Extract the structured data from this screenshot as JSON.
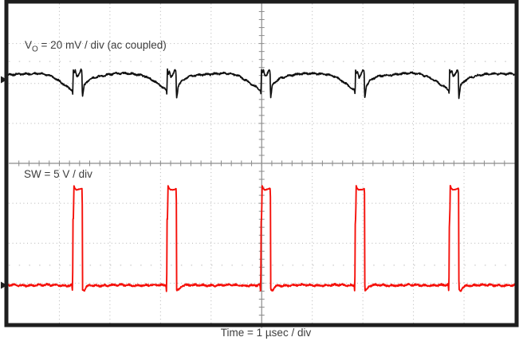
{
  "scope": {
    "description": "Oscilloscope capture of switching regulator waveforms",
    "grid_divisions_x": 10,
    "grid_divisions_y": 8,
    "frame_color": "#1e1e1e",
    "grid_color": "#b3b3b3",
    "axis_color": "#8c8c8c",
    "label_color": "#3d3d3d"
  },
  "chart_data": {
    "type": "line",
    "xlabel": "Time = 1 µsec / div",
    "time_per_div_us": 1,
    "x_range_us": [
      0,
      10
    ],
    "grid": {
      "x_divisions": 10,
      "y_divisions": 8,
      "style": "dotted",
      "center_axes_minor_ticks_per_div": 5
    },
    "series": [
      {
        "name": "VO",
        "legend_parts": {
          "prefix": "V",
          "sub": "O",
          "rest": " = 20 mV / div (ac coupled)"
        },
        "color": "#101010",
        "unit": "mV",
        "units_per_div": 20,
        "zero_div_from_top": 1.905,
        "period_us": 1.86,
        "first_edge_us": 1.26,
        "ripple_mv_pp": 15,
        "cycle_waypoints_t_v": [
          [
            0.0,
            -5.5
          ],
          [
            0.008,
            -9.0
          ],
          [
            0.012,
            5.8
          ],
          [
            0.03,
            3.0
          ],
          [
            0.055,
            4.6
          ],
          [
            0.085,
            1.4
          ],
          [
            0.12,
            2.4
          ],
          [
            0.165,
            5.0
          ],
          [
            0.185,
            4.2
          ],
          [
            0.196,
            -9.5
          ],
          [
            0.23,
            -3.0
          ],
          [
            0.3,
            -0.6
          ],
          [
            0.42,
            1.2
          ],
          [
            0.6,
            2.2
          ],
          [
            0.8,
            2.8
          ],
          [
            1.0,
            3.1
          ],
          [
            1.15,
            3.1
          ],
          [
            1.3,
            2.7
          ],
          [
            1.45,
            1.6
          ],
          [
            1.6,
            -0.6
          ],
          [
            1.72,
            -2.8
          ],
          [
            1.8,
            -4.2
          ],
          [
            1.86,
            -5.5
          ]
        ],
        "noise_low": 0.5,
        "noise_high": 0.5,
        "high_level": 100,
        "slope_cut": 300,
        "stroke_width": 1.7,
        "seed": 7
      },
      {
        "name": "SW",
        "legend": "SW = 5 V / div",
        "color": "#f5100a",
        "unit": "V",
        "units_per_div": 5,
        "zero_div_from_top": 7.052,
        "period_us": 1.86,
        "first_edge_us": 1.26,
        "on_time_us": 0.19,
        "high_v": 12.0,
        "low_v": 0.0,
        "cycle_waypoints_t_v": [
          [
            0.0,
            -0.9
          ],
          [
            0.006,
            3.0
          ],
          [
            0.01,
            8.3
          ],
          [
            0.02,
            8.3
          ],
          [
            0.026,
            12.5
          ],
          [
            0.045,
            12.15
          ],
          [
            0.075,
            11.95
          ],
          [
            0.15,
            12.0
          ],
          [
            0.186,
            12.1
          ],
          [
            0.192,
            12.1
          ],
          [
            0.199,
            -0.6
          ],
          [
            0.235,
            -0.62
          ],
          [
            0.285,
            -0.2
          ],
          [
            0.345,
            -0.02
          ],
          [
            0.7,
            0.0
          ],
          [
            1.4,
            0.0
          ],
          [
            1.82,
            0.0
          ],
          [
            1.848,
            0.05
          ],
          [
            1.853,
            -0.4
          ],
          [
            1.86,
            -0.9
          ]
        ],
        "noise_low": 0.13,
        "noise_high": 0.045,
        "high_level": 6,
        "slope_cut": 60,
        "stroke_width": 1.9,
        "seed": 41
      }
    ]
  }
}
